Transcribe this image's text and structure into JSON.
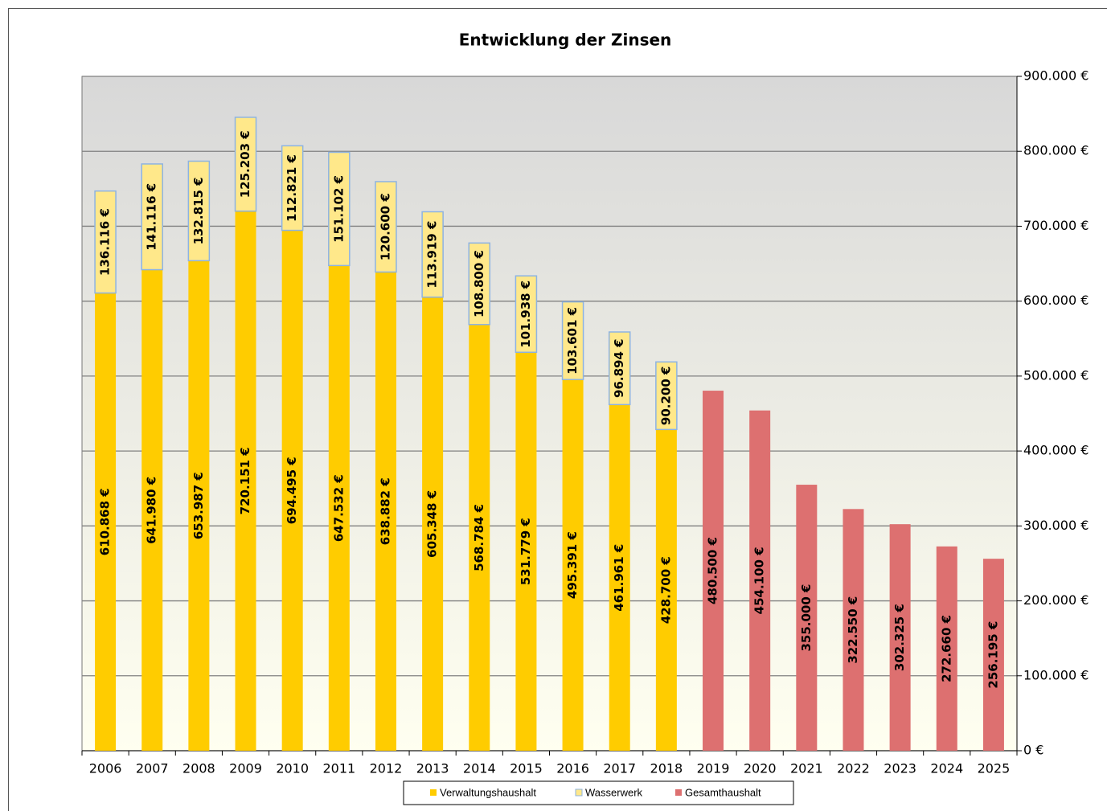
{
  "chart_data": {
    "type": "bar",
    "stacked": true,
    "title": "Entwicklung der Zinsen",
    "categories": [
      "2006",
      "2007",
      "2008",
      "2009",
      "2010",
      "2011",
      "2012",
      "2013",
      "2014",
      "2015",
      "2016",
      "2017",
      "2018",
      "2019",
      "2020",
      "2021",
      "2022",
      "2023",
      "2024",
      "2025"
    ],
    "series": [
      {
        "name": "Verwaltungshaushalt",
        "color": "#ffcc00",
        "values": [
          610868,
          641980,
          653987,
          720151,
          694495,
          647532,
          638882,
          605348,
          568784,
          531779,
          495391,
          461961,
          428700,
          null,
          null,
          null,
          null,
          null,
          null,
          null
        ],
        "value_labels": [
          "610.868 €",
          "641.980 €",
          "653.987 €",
          "720.151 €",
          "694.495 €",
          "647.532 €",
          "638.882 €",
          "605.348 €",
          "568.784 €",
          "531.779 €",
          "495.391 €",
          "461.961 €",
          "428.700 €",
          null,
          null,
          null,
          null,
          null,
          null,
          null
        ]
      },
      {
        "name": "Wasserwerk",
        "color": "#ffe88a",
        "values": [
          136116,
          141116,
          132815,
          125203,
          112821,
          151102,
          120600,
          113919,
          108800,
          101938,
          103601,
          96894,
          90200,
          null,
          null,
          null,
          null,
          null,
          null,
          null
        ],
        "value_labels": [
          "136.116 €",
          "141.116 €",
          "132.815 €",
          "125.203 €",
          "112.821 €",
          "151.102 €",
          "120.600 €",
          "113.919 €",
          "108.800 €",
          "101.938 €",
          "103.601 €",
          "96.894 €",
          "90.200 €",
          null,
          null,
          null,
          null,
          null,
          null,
          null
        ]
      },
      {
        "name": "Gesamthaushalt",
        "color": "#dd7070",
        "values": [
          null,
          null,
          null,
          null,
          null,
          null,
          null,
          null,
          null,
          null,
          null,
          null,
          null,
          480500,
          454100,
          355000,
          322550,
          302325,
          272660,
          256195
        ],
        "value_labels": [
          null,
          null,
          null,
          null,
          null,
          null,
          null,
          null,
          null,
          null,
          null,
          null,
          null,
          "480.500 €",
          "454.100 €",
          "355.000 €",
          "322.550 €",
          "302.325 €",
          "272.660 €",
          "256.195 €"
        ]
      }
    ],
    "ylim": [
      0,
      900000
    ],
    "yticks": [
      {
        "value": 0,
        "label": "0 €"
      },
      {
        "value": 100000,
        "label": "100.000 €"
      },
      {
        "value": 200000,
        "label": "200.000 €"
      },
      {
        "value": 300000,
        "label": "300.000 €"
      },
      {
        "value": 400000,
        "label": "400.000 €"
      },
      {
        "value": 500000,
        "label": "500.000 €"
      },
      {
        "value": 600000,
        "label": "600.000 €"
      },
      {
        "value": 700000,
        "label": "700.000 €"
      },
      {
        "value": 800000,
        "label": "800.000 €"
      },
      {
        "value": 900000,
        "label": "900.000 €"
      }
    ],
    "grid": true,
    "legend": "bottom"
  }
}
